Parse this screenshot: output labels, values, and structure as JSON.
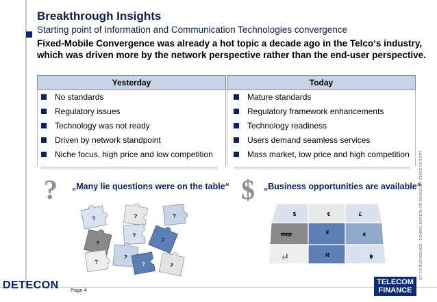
{
  "header": {
    "title": "Breakthrough Insights",
    "subtitle": "Starting point of Information and Communication Technologies convergence",
    "headline_line1": "Fixed-Mobile Convergence was already a hot topic a decade ago in the Telco‘s industry,",
    "headline_line2": "which was driven more by the network perspective rather than the end-user perspective."
  },
  "yesterday": {
    "heading": "Yesterday",
    "items": [
      "No standards",
      "Regulatory issues",
      "Technology was not ready",
      "Driven by network standpoint",
      "Niche focus, high price and low competition"
    ],
    "glyph": "?",
    "quote": "„Many lie questions were on the table“",
    "puzzle_marks": [
      "?",
      "?",
      "?",
      "?",
      "?",
      "?",
      "?",
      "?",
      "?",
      "?"
    ]
  },
  "today": {
    "heading": "Today",
    "items": [
      "Mature standards",
      "Regulatory framework enhancements",
      "Technology readiness",
      "Users demand seamless services",
      "Mass market, low price and high competition"
    ],
    "glyph": "$",
    "quote": "„Business opportunities are available“",
    "currency_marks": [
      "$",
      "€",
      "£",
      "रुपया",
      "¥",
      "¢",
      "R",
      "ا.د",
      "฿"
    ]
  },
  "footer": {
    "company_logo": "DETECON",
    "page": "Page 4",
    "partner_logo_line1": "TELECOM",
    "partner_logo_line2": "FINANCE",
    "side_text": "ICT CONVERGENCE - CONSOLIDATION OR SHAKEOUT STAGE V3 0.PPT"
  },
  "colors": {
    "navy": "#0b1e6e",
    "header_fill": "#c8d3e6",
    "puzzle_blue": "#5b7fb5",
    "puzzle_light": "#d9e2ee"
  }
}
